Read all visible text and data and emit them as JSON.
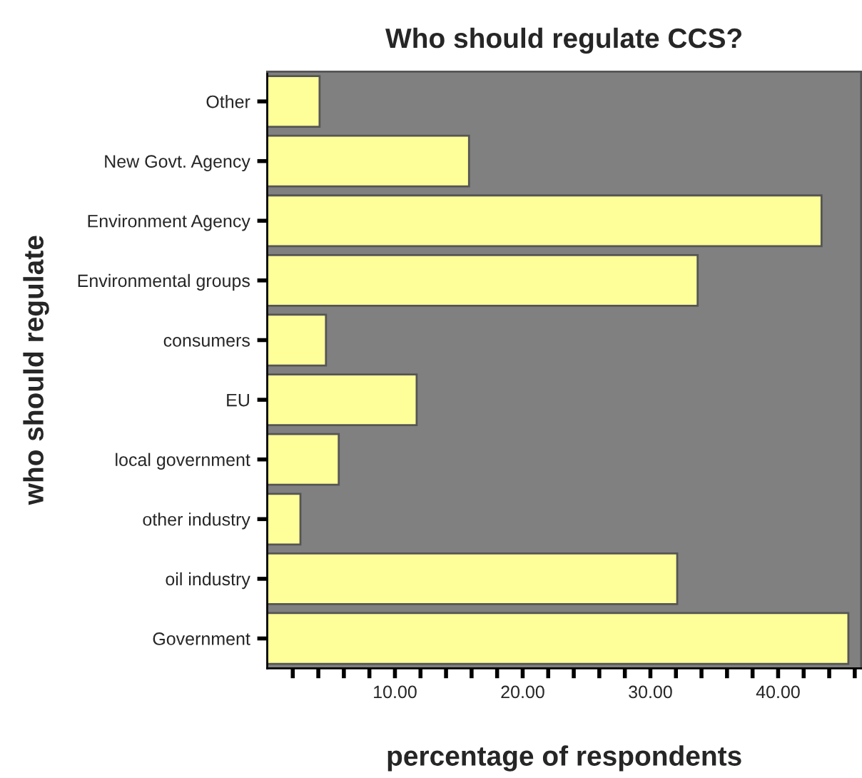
{
  "chart_data": {
    "type": "bar",
    "orientation": "horizontal",
    "title": "Who should regulate CCS?",
    "xlabel": "percentage of respondents",
    "ylabel": "who should regulate",
    "categories": [
      "Other",
      "New Govt. Agency",
      "Environment Agency",
      "Environmental groups",
      "consumers",
      "EU",
      "local government",
      "other industry",
      "oil industry",
      "Government"
    ],
    "values": [
      4.1,
      15.8,
      43.4,
      33.7,
      4.6,
      11.7,
      5.6,
      2.6,
      32.1,
      45.5
    ],
    "color": "#ffff99",
    "xlim": [
      0,
      46.5
    ],
    "xticks": [
      {
        "value": 2,
        "label": null
      },
      {
        "value": 4,
        "label": null
      },
      {
        "value": 6,
        "label": null
      },
      {
        "value": 8,
        "label": null
      },
      {
        "value": 10,
        "label": "10.00"
      },
      {
        "value": 12,
        "label": null
      },
      {
        "value": 14,
        "label": null
      },
      {
        "value": 16,
        "label": null
      },
      {
        "value": 18,
        "label": null
      },
      {
        "value": 20,
        "label": "20.00"
      },
      {
        "value": 22,
        "label": null
      },
      {
        "value": 24,
        "label": null
      },
      {
        "value": 26,
        "label": null
      },
      {
        "value": 28,
        "label": null
      },
      {
        "value": 30,
        "label": "30.00"
      },
      {
        "value": 32,
        "label": null
      },
      {
        "value": 34,
        "label": null
      },
      {
        "value": 36,
        "label": null
      },
      {
        "value": 38,
        "label": null
      },
      {
        "value": 40,
        "label": "40.00"
      },
      {
        "value": 42,
        "label": null
      },
      {
        "value": 44,
        "label": null
      },
      {
        "value": 46,
        "label": null
      }
    ],
    "grid": false,
    "legend": false
  }
}
